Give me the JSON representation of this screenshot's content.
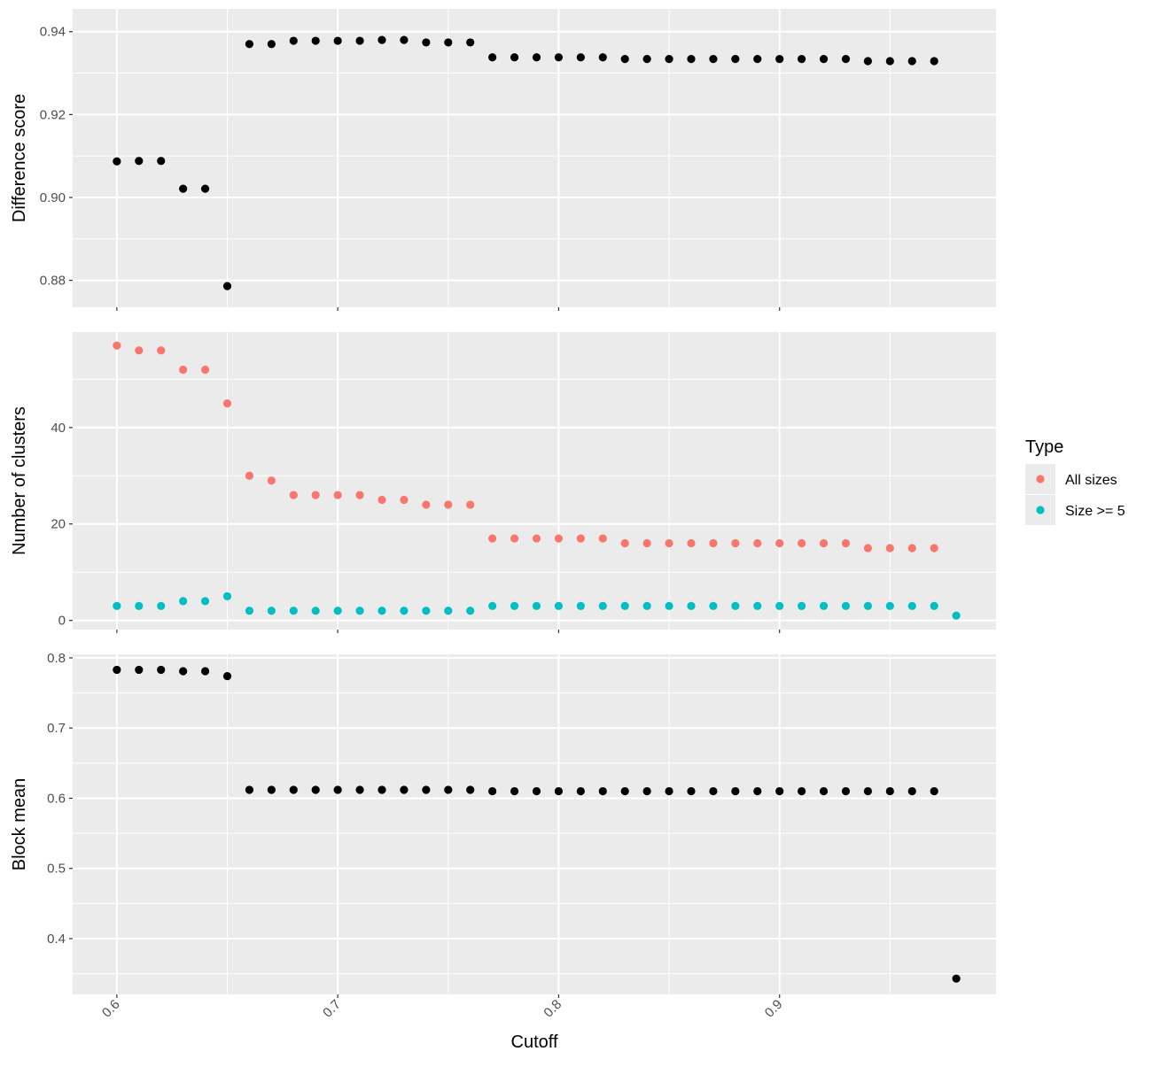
{
  "chart_data": [
    {
      "panel": "top",
      "type": "scatter",
      "title": "",
      "xlabel": "",
      "ylabel": "Difference score",
      "xlim": [
        0.58,
        0.998
      ],
      "ylim": [
        0.8735,
        0.9455
      ],
      "grid": true,
      "yticks": [
        0.88,
        0.9,
        0.92,
        0.94
      ],
      "ytick_labels": [
        "0.88",
        "0.90",
        "0.92",
        "0.94"
      ],
      "xticks": [
        0.6,
        0.7,
        0.8,
        0.9
      ],
      "series": [
        {
          "color": "#000000",
          "points": [
            [
              0.6,
              0.9087
            ],
            [
              0.61,
              0.9088
            ],
            [
              0.62,
              0.9088
            ],
            [
              0.63,
              0.9021
            ],
            [
              0.64,
              0.9021
            ],
            [
              0.65,
              0.8786
            ],
            [
              0.66,
              0.937
            ],
            [
              0.67,
              0.937
            ],
            [
              0.68,
              0.9378
            ],
            [
              0.69,
              0.9378
            ],
            [
              0.7,
              0.9378
            ],
            [
              0.71,
              0.9378
            ],
            [
              0.72,
              0.938
            ],
            [
              0.73,
              0.938
            ],
            [
              0.74,
              0.9374
            ],
            [
              0.75,
              0.9374
            ],
            [
              0.76,
              0.9374
            ],
            [
              0.77,
              0.9338
            ],
            [
              0.78,
              0.9338
            ],
            [
              0.79,
              0.9338
            ],
            [
              0.8,
              0.9338
            ],
            [
              0.81,
              0.9338
            ],
            [
              0.82,
              0.9338
            ],
            [
              0.83,
              0.9334
            ],
            [
              0.84,
              0.9334
            ],
            [
              0.85,
              0.9334
            ],
            [
              0.86,
              0.9334
            ],
            [
              0.87,
              0.9334
            ],
            [
              0.88,
              0.9334
            ],
            [
              0.89,
              0.9334
            ],
            [
              0.9,
              0.9334
            ],
            [
              0.91,
              0.9334
            ],
            [
              0.92,
              0.9334
            ],
            [
              0.93,
              0.9334
            ],
            [
              0.94,
              0.9329
            ],
            [
              0.95,
              0.9329
            ],
            [
              0.96,
              0.9329
            ],
            [
              0.97,
              0.9329
            ]
          ]
        }
      ]
    },
    {
      "panel": "middle",
      "type": "scatter",
      "title": "",
      "xlabel": "",
      "ylabel": "Number of clusters",
      "xlim": [
        0.58,
        0.998
      ],
      "ylim": [
        -1.9,
        59.8
      ],
      "grid": true,
      "yticks": [
        0,
        20,
        40
      ],
      "ytick_labels": [
        "0",
        "20",
        "40"
      ],
      "xticks": [
        0.6,
        0.7,
        0.8,
        0.9
      ],
      "legend": {
        "title": "Type",
        "position": "right",
        "entries": [
          {
            "label": "All sizes",
            "color": "#F8766D"
          },
          {
            "label": "Size >= 5",
            "color": "#00BFC4"
          }
        ]
      },
      "series": [
        {
          "name": "All sizes",
          "color": "#F8766D",
          "points": [
            [
              0.6,
              57
            ],
            [
              0.61,
              56
            ],
            [
              0.62,
              56
            ],
            [
              0.63,
              52
            ],
            [
              0.64,
              52
            ],
            [
              0.65,
              45
            ],
            [
              0.66,
              30
            ],
            [
              0.67,
              29
            ],
            [
              0.68,
              26
            ],
            [
              0.69,
              26
            ],
            [
              0.7,
              26
            ],
            [
              0.71,
              26
            ],
            [
              0.72,
              25
            ],
            [
              0.73,
              25
            ],
            [
              0.74,
              24
            ],
            [
              0.75,
              24
            ],
            [
              0.76,
              24
            ],
            [
              0.77,
              17
            ],
            [
              0.78,
              17
            ],
            [
              0.79,
              17
            ],
            [
              0.8,
              17
            ],
            [
              0.81,
              17
            ],
            [
              0.82,
              17
            ],
            [
              0.83,
              16
            ],
            [
              0.84,
              16
            ],
            [
              0.85,
              16
            ],
            [
              0.86,
              16
            ],
            [
              0.87,
              16
            ],
            [
              0.88,
              16
            ],
            [
              0.89,
              16
            ],
            [
              0.9,
              16
            ],
            [
              0.91,
              16
            ],
            [
              0.92,
              16
            ],
            [
              0.93,
              16
            ],
            [
              0.94,
              15
            ],
            [
              0.95,
              15
            ],
            [
              0.96,
              15
            ],
            [
              0.97,
              15
            ]
          ]
        },
        {
          "name": "Size >= 5",
          "color": "#00BFC4",
          "points": [
            [
              0.6,
              3
            ],
            [
              0.61,
              3
            ],
            [
              0.62,
              3
            ],
            [
              0.63,
              4
            ],
            [
              0.64,
              4
            ],
            [
              0.65,
              5
            ],
            [
              0.66,
              2
            ],
            [
              0.67,
              2
            ],
            [
              0.68,
              2
            ],
            [
              0.69,
              2
            ],
            [
              0.7,
              2
            ],
            [
              0.71,
              2
            ],
            [
              0.72,
              2
            ],
            [
              0.73,
              2
            ],
            [
              0.74,
              2
            ],
            [
              0.75,
              2
            ],
            [
              0.76,
              2
            ],
            [
              0.77,
              3
            ],
            [
              0.78,
              3
            ],
            [
              0.79,
              3
            ],
            [
              0.8,
              3
            ],
            [
              0.81,
              3
            ],
            [
              0.82,
              3
            ],
            [
              0.83,
              3
            ],
            [
              0.84,
              3
            ],
            [
              0.85,
              3
            ],
            [
              0.86,
              3
            ],
            [
              0.87,
              3
            ],
            [
              0.88,
              3
            ],
            [
              0.89,
              3
            ],
            [
              0.9,
              3
            ],
            [
              0.91,
              3
            ],
            [
              0.92,
              3
            ],
            [
              0.93,
              3
            ],
            [
              0.94,
              3
            ],
            [
              0.95,
              3
            ],
            [
              0.96,
              3
            ],
            [
              0.97,
              3
            ],
            [
              0.98,
              1
            ]
          ]
        }
      ]
    },
    {
      "panel": "bottom",
      "type": "scatter",
      "title": "",
      "xlabel": "Cutoff",
      "ylabel": "Block mean",
      "xlim": [
        0.58,
        0.998
      ],
      "ylim": [
        0.3205,
        0.805
      ],
      "grid": true,
      "yticks": [
        0.4,
        0.5,
        0.6,
        0.7,
        0.8
      ],
      "ytick_labels": [
        "0.4",
        "0.5",
        "0.6",
        "0.7",
        "0.8"
      ],
      "xticks": [
        0.6,
        0.7,
        0.8,
        0.9
      ],
      "xtick_labels": [
        "0.6",
        "0.7",
        "0.8",
        "0.9"
      ],
      "series": [
        {
          "color": "#000000",
          "points": [
            [
              0.6,
              0.783
            ],
            [
              0.61,
              0.783
            ],
            [
              0.62,
              0.783
            ],
            [
              0.63,
              0.781
            ],
            [
              0.64,
              0.781
            ],
            [
              0.65,
              0.774
            ],
            [
              0.66,
              0.612
            ],
            [
              0.67,
              0.612
            ],
            [
              0.68,
              0.612
            ],
            [
              0.69,
              0.612
            ],
            [
              0.7,
              0.612
            ],
            [
              0.71,
              0.612
            ],
            [
              0.72,
              0.612
            ],
            [
              0.73,
              0.612
            ],
            [
              0.74,
              0.612
            ],
            [
              0.75,
              0.612
            ],
            [
              0.76,
              0.612
            ],
            [
              0.77,
              0.61
            ],
            [
              0.78,
              0.61
            ],
            [
              0.79,
              0.61
            ],
            [
              0.8,
              0.61
            ],
            [
              0.81,
              0.61
            ],
            [
              0.82,
              0.61
            ],
            [
              0.83,
              0.61
            ],
            [
              0.84,
              0.61
            ],
            [
              0.85,
              0.61
            ],
            [
              0.86,
              0.61
            ],
            [
              0.87,
              0.61
            ],
            [
              0.88,
              0.61
            ],
            [
              0.89,
              0.61
            ],
            [
              0.9,
              0.61
            ],
            [
              0.91,
              0.61
            ],
            [
              0.92,
              0.61
            ],
            [
              0.93,
              0.61
            ],
            [
              0.94,
              0.61
            ],
            [
              0.95,
              0.61
            ],
            [
              0.96,
              0.61
            ],
            [
              0.97,
              0.61
            ],
            [
              0.98,
              0.343
            ]
          ]
        }
      ]
    }
  ]
}
